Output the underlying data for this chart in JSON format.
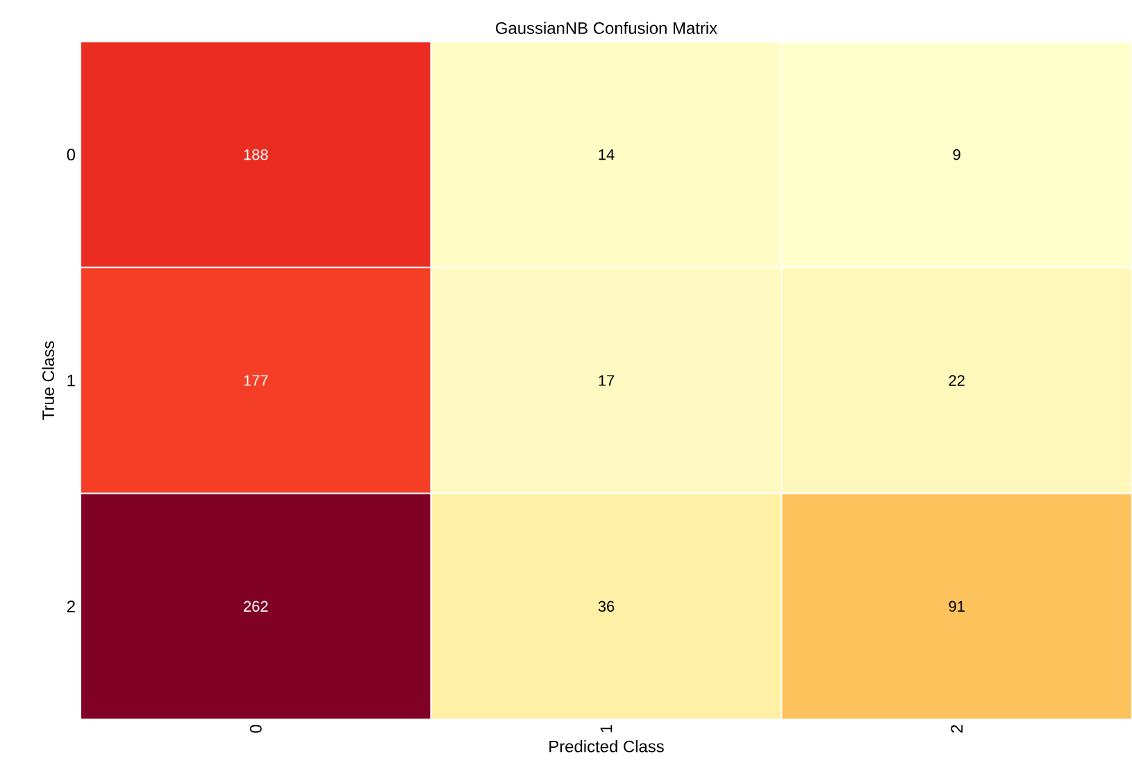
{
  "chart_data": {
    "type": "heatmap",
    "title": "GaussianNB Confusion Matrix",
    "xlabel": "Predicted Class",
    "ylabel": "True Class",
    "categories": [
      "0",
      "1",
      "2"
    ],
    "y_categories": [
      "0",
      "1",
      "2"
    ],
    "cells": [
      [
        188,
        14,
        9
      ],
      [
        177,
        17,
        22
      ],
      [
        262,
        36,
        91
      ]
    ],
    "data_labels": true
  }
}
